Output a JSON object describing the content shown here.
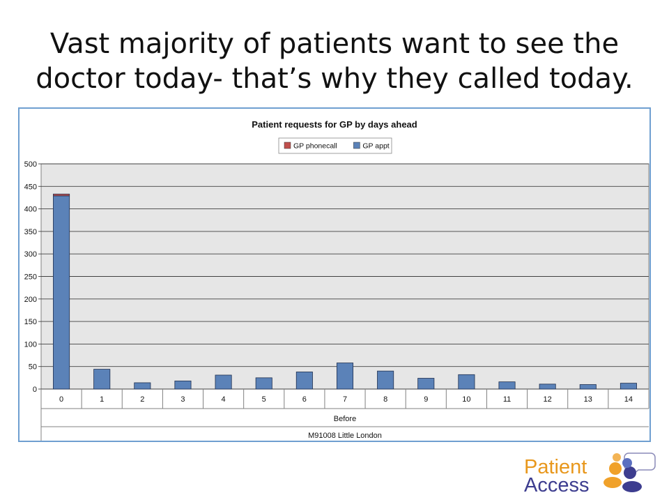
{
  "slide": {
    "title": "Vast majority of patients want to see the doctor today- that’s why they called today."
  },
  "logo": {
    "line1": "Patient",
    "line2": "Access",
    "colors": {
      "orange": "#f0a12a",
      "navy": "#3d3d8f",
      "blue": "#5b6fc0"
    }
  },
  "chart_data": {
    "type": "bar",
    "stacked": true,
    "title": "Patient requests for GP by days ahead",
    "categories": [
      "0",
      "1",
      "2",
      "3",
      "4",
      "5",
      "6",
      "7",
      "8",
      "9",
      "10",
      "11",
      "12",
      "13",
      "14"
    ],
    "series": [
      {
        "name": "GP appt",
        "color": "#5b82b8",
        "values": [
          429,
          44,
          14,
          18,
          31,
          25,
          38,
          58,
          40,
          24,
          32,
          16,
          11,
          10,
          13
        ]
      },
      {
        "name": "GP phonecall",
        "color": "#c0504d",
        "values": [
          4,
          0,
          0,
          0,
          0,
          0,
          0,
          0,
          0,
          0,
          0,
          0,
          0,
          0,
          0
        ]
      }
    ],
    "ylim": [
      0,
      500
    ],
    "yticks": [
      0,
      50,
      100,
      150,
      200,
      250,
      300,
      350,
      400,
      450,
      500
    ],
    "grid": true,
    "legend": "top-center",
    "x_group_label": "Before",
    "x_outer_label": "M91008 Little London",
    "plot_bg": "#e6e6e6"
  }
}
